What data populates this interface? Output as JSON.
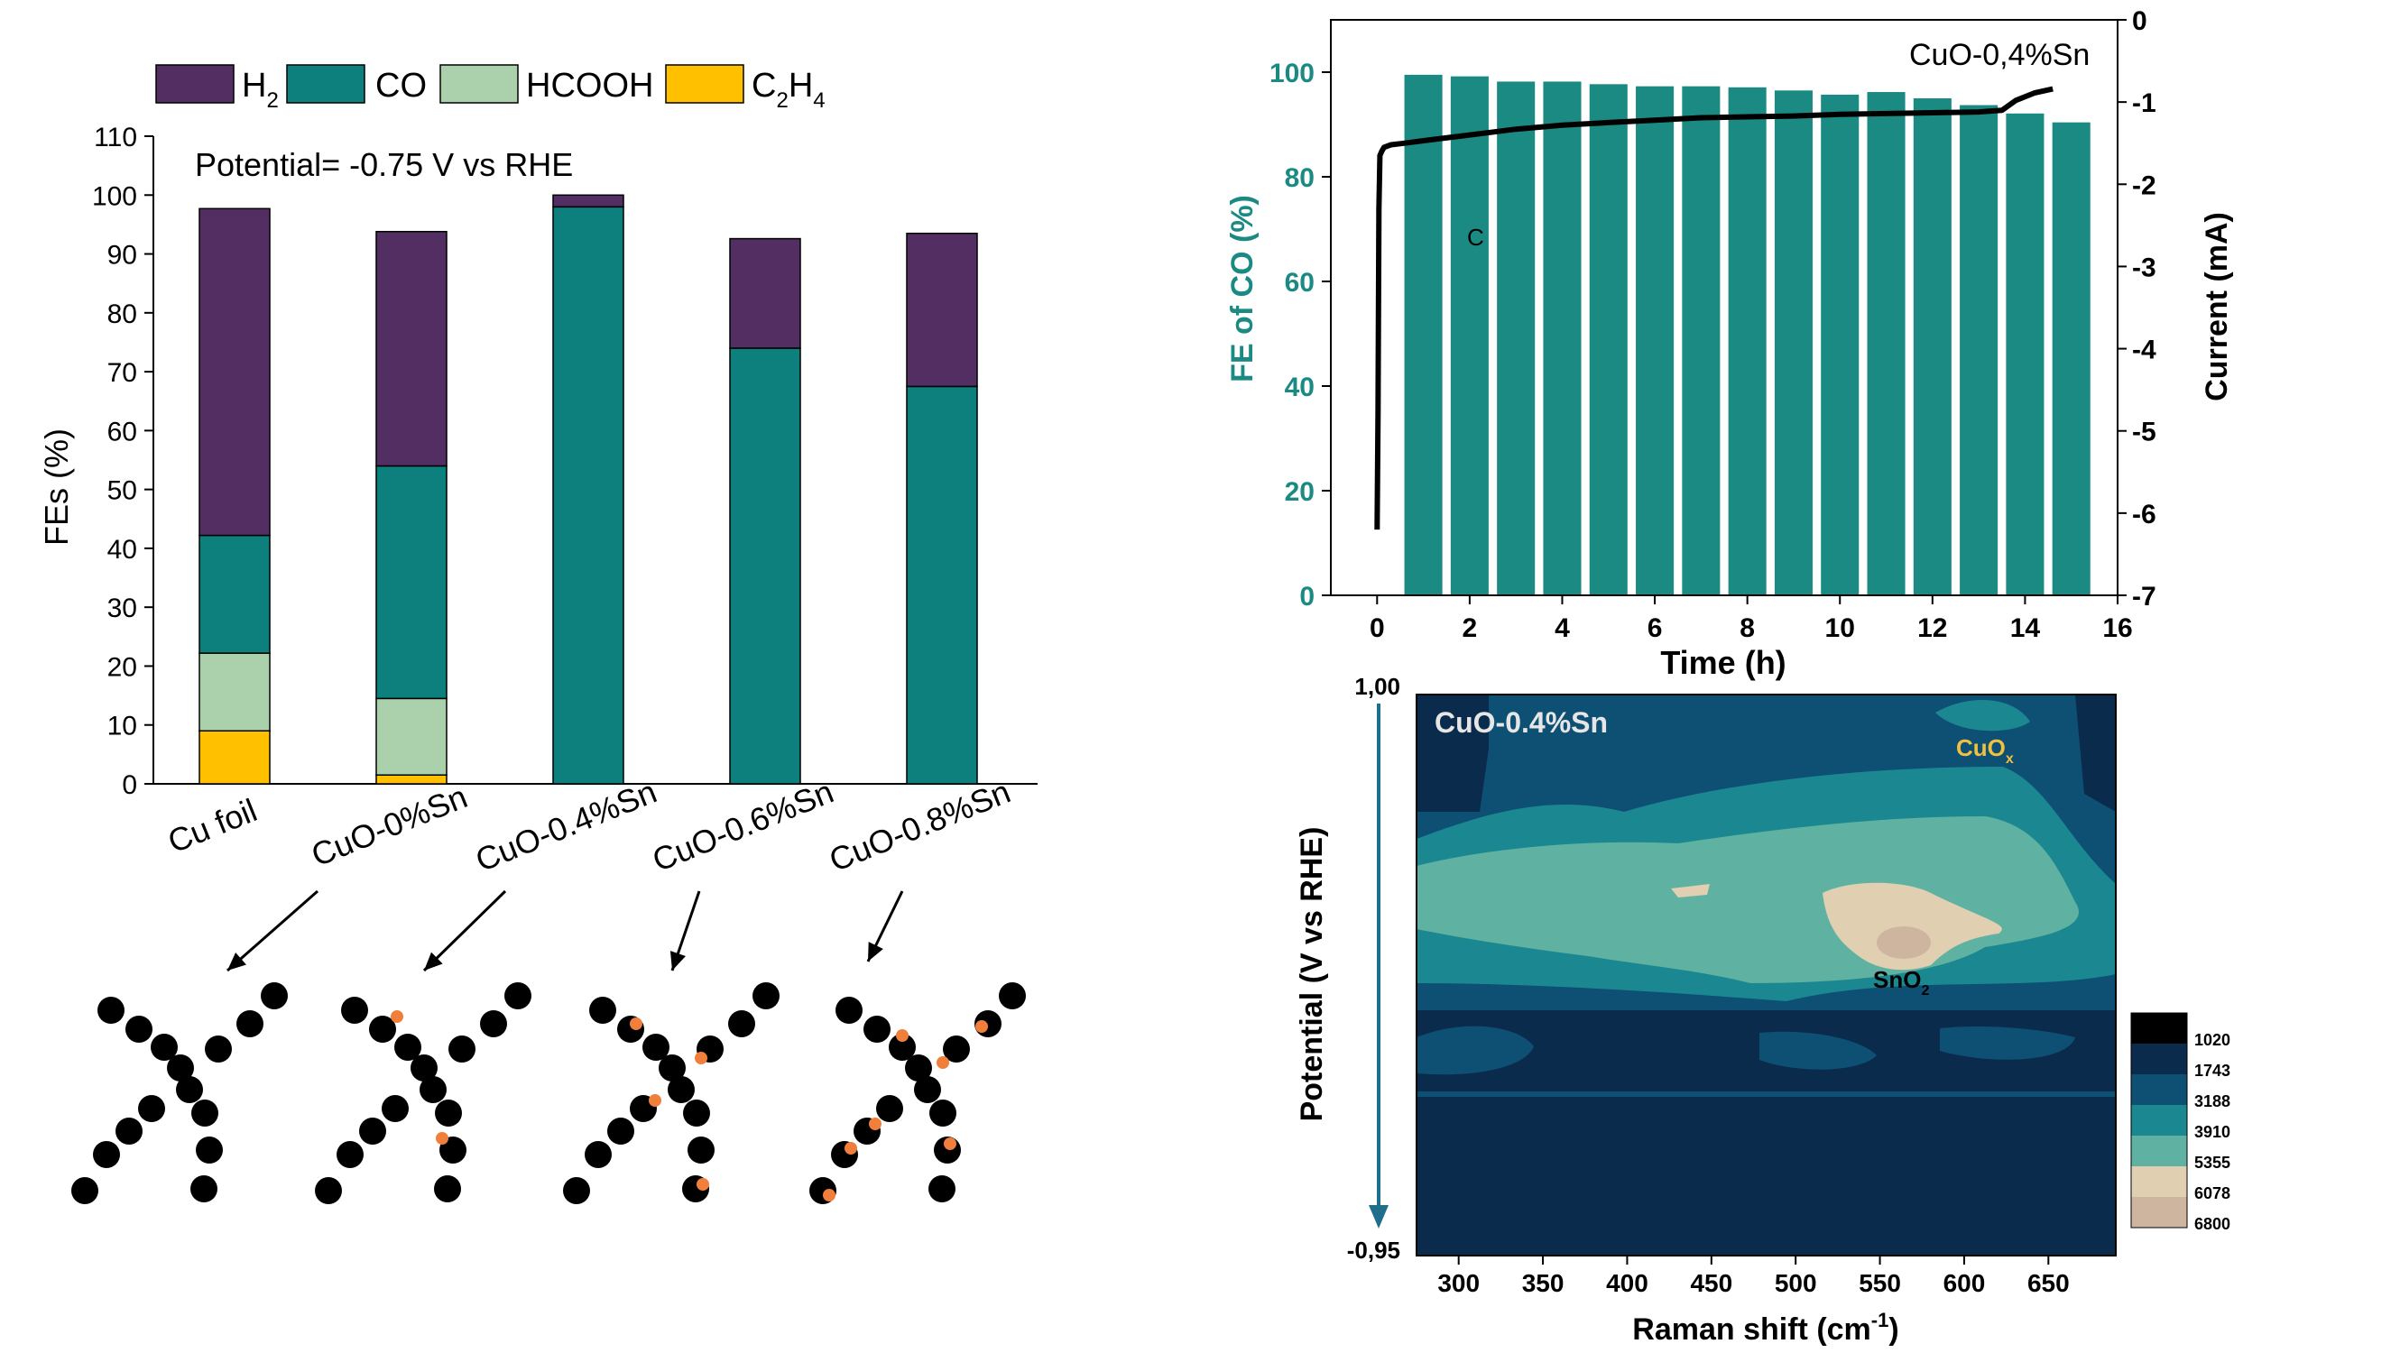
{
  "colors": {
    "h2": "#532e63",
    "co": "#0d7f7d",
    "hcooh": "#aad0ac",
    "c2h4": "#ffc000",
    "co_bar": "#1a8a83",
    "teal_axis": "#1a8a83",
    "ink": "#000000",
    "particle": "#000000",
    "dopant": "#f07f3c",
    "cuox_label": "#f0c040",
    "map_title": "#e6e6e6",
    "arrow_blue": "#1e6e8c"
  },
  "chart_data": [
    {
      "id": "fe_stacked",
      "type": "bar",
      "stacked": true,
      "title": "",
      "annotation": "Potential= -0.75 V vs RHE",
      "xlabel": "",
      "ylabel": "FEs (%)",
      "ylim": [
        0,
        110
      ],
      "yticks": [
        0,
        10,
        20,
        30,
        40,
        50,
        60,
        70,
        80,
        90,
        100,
        110
      ],
      "categories": [
        "Cu foil",
        "CuO-0%Sn",
        "CuO-0.4%Sn",
        "CuO-0.6%Sn",
        "CuO-0.8%Sn"
      ],
      "legend_position": "top",
      "legend": [
        {
          "key": "c2h4",
          "base": "C",
          "sub1": "2",
          "mid": "H",
          "sub2": "4"
        },
        {
          "key": "hcooh",
          "base": "HCOOH"
        },
        {
          "key": "co",
          "base": "CO"
        },
        {
          "key": "h2",
          "base": "H",
          "sub1": "2"
        }
      ],
      "series": [
        {
          "name": "C2H4",
          "key": "c2h4",
          "values": [
            9,
            1.5,
            0,
            0,
            0
          ]
        },
        {
          "name": "HCOOH",
          "key": "hcooh",
          "values": [
            13.2,
            13,
            0,
            0,
            0
          ]
        },
        {
          "name": "CO",
          "key": "co",
          "values": [
            20,
            39.5,
            98,
            74,
            67.5
          ]
        },
        {
          "name": "H2",
          "key": "h2",
          "values": [
            55.5,
            39.8,
            2,
            18.6,
            26
          ]
        }
      ]
    },
    {
      "id": "stability",
      "type": "bar",
      "title": "",
      "annotation": "CuO-0,4%Sn",
      "curve_label": "C",
      "xlabel": "Time (h)",
      "ylabel": "FE of CO (%)",
      "y2label": "Current (mA)",
      "xlim": [
        -1,
        16
      ],
      "xticks": [
        0,
        2,
        4,
        6,
        8,
        10,
        12,
        14,
        16
      ],
      "ylim": [
        0,
        110
      ],
      "yticks": [
        0,
        20,
        40,
        60,
        80,
        100
      ],
      "y2lim": [
        -7,
        0
      ],
      "y2ticks": [
        0,
        -1,
        -2,
        -3,
        -4,
        -5,
        -6,
        -7
      ],
      "series": [
        {
          "name": "FE of CO",
          "type": "bar",
          "x": [
            1,
            2,
            3,
            4,
            5,
            6,
            7,
            8,
            9,
            10,
            11,
            12,
            13,
            14,
            15
          ],
          "values": [
            99.5,
            99.2,
            98.2,
            98.2,
            97.7,
            97.3,
            97.3,
            97.1,
            96.5,
            95.7,
            96.2,
            95,
            93.7,
            92.1,
            90.4
          ]
        },
        {
          "name": "Current",
          "type": "line",
          "x": [
            0,
            0.02,
            0.04,
            0.06,
            0.1,
            0.15,
            0.3,
            0.6,
            1,
            2,
            3,
            4,
            5,
            6,
            7,
            8,
            9,
            10,
            11,
            12,
            13,
            13.5,
            13.8,
            14.2,
            14.6
          ],
          "values": [
            -6.2,
            -4.8,
            -2.3,
            -1.65,
            -1.6,
            -1.55,
            -1.52,
            -1.5,
            -1.47,
            -1.4,
            -1.33,
            -1.28,
            -1.25,
            -1.22,
            -1.19,
            -1.18,
            -1.17,
            -1.15,
            -1.14,
            -1.13,
            -1.12,
            -1.1,
            -0.98,
            -0.89,
            -0.84
          ]
        }
      ]
    },
    {
      "id": "raman_map",
      "type": "heatmap",
      "title": "CuO-0.4%Sn",
      "xlabel": "Raman shift (cm-1)",
      "xlabel_main": "Raman shift (cm",
      "xlabel_sup": "-1",
      "xlabel_end": ")",
      "ylabel": "Potential (V vs RHE)",
      "xlim": [
        275,
        690
      ],
      "xticks": [
        300,
        350,
        400,
        450,
        500,
        550,
        600,
        650
      ],
      "ytick_top": "1,00",
      "ytick_bottom": "-0,95",
      "annotations": [
        {
          "base": "CuO",
          "sub": "x"
        },
        {
          "base": "SnO",
          "sub": "2"
        }
      ],
      "colorbar": {
        "levels": [
          "1020",
          "1743",
          "3188",
          "3910",
          "5355",
          "6078",
          "6800"
        ],
        "colors": [
          "#000000",
          "#0b2b4c",
          "#0e4f74",
          "#1b8891",
          "#5fb2a1",
          "#e0cfb1",
          "#cdb59f"
        ]
      }
    }
  ],
  "schematics": {
    "labels": [
      "Cu foil",
      "CuO-0%Sn",
      "CuO-0.4%Sn",
      "CuO-0.6%Sn",
      "CuO-0.8%Sn"
    ]
  }
}
